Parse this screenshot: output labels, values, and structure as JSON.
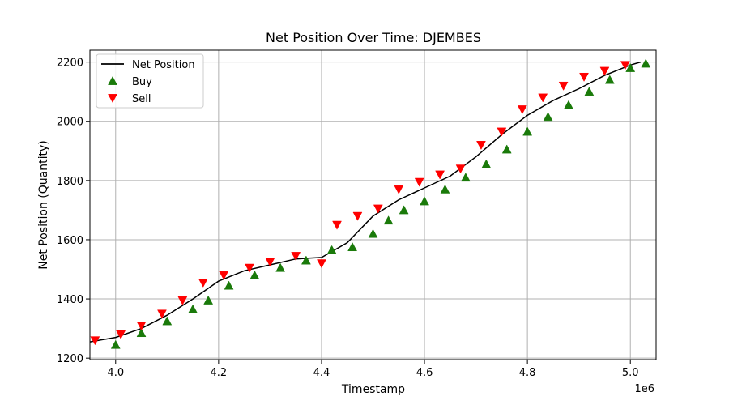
{
  "chart_data": {
    "type": "scatter",
    "title": "Net Position Over Time: DJEMBES",
    "xlabel": "Timestamp",
    "ylabel": "Net Position (Quantity)",
    "x_offset_label": "1e6",
    "xlim": [
      3.95,
      5.05
    ],
    "ylim": [
      1195,
      2240
    ],
    "x_ticks": [
      4.0,
      4.2,
      4.4,
      4.6,
      4.8,
      5.0
    ],
    "x_tick_labels": [
      "4.0",
      "4.2",
      "4.4",
      "4.6",
      "4.8",
      "5.0"
    ],
    "y_ticks": [
      1200,
      1400,
      1600,
      1800,
      2000,
      2200
    ],
    "y_tick_labels": [
      "1200",
      "1400",
      "1600",
      "1800",
      "2000",
      "2200"
    ],
    "grid": true,
    "legend_position": "top-left",
    "legend": [
      {
        "label": "Net Position",
        "marker": "line",
        "color": "#000000"
      },
      {
        "label": "Buy",
        "marker": "triangle-up",
        "color": "#1a7a0a"
      },
      {
        "label": "Sell",
        "marker": "triangle-down",
        "color": "#ff0000"
      }
    ],
    "series": [
      {
        "name": "Net Position",
        "kind": "line",
        "color": "#000000",
        "points": [
          [
            3.95,
            1255
          ],
          [
            4.0,
            1270
          ],
          [
            4.05,
            1300
          ],
          [
            4.1,
            1345
          ],
          [
            4.15,
            1400
          ],
          [
            4.2,
            1460
          ],
          [
            4.25,
            1495
          ],
          [
            4.3,
            1515
          ],
          [
            4.35,
            1535
          ],
          [
            4.4,
            1540
          ],
          [
            4.45,
            1590
          ],
          [
            4.5,
            1680
          ],
          [
            4.55,
            1735
          ],
          [
            4.6,
            1775
          ],
          [
            4.65,
            1815
          ],
          [
            4.7,
            1880
          ],
          [
            4.75,
            1955
          ],
          [
            4.8,
            2020
          ],
          [
            4.85,
            2070
          ],
          [
            4.9,
            2110
          ],
          [
            4.95,
            2155
          ],
          [
            5.0,
            2190
          ],
          [
            5.02,
            2200
          ]
        ]
      },
      {
        "name": "Buy",
        "kind": "markers",
        "color": "#1a7a0a",
        "points": [
          [
            4.0,
            1245
          ],
          [
            4.05,
            1285
          ],
          [
            4.1,
            1325
          ],
          [
            4.15,
            1365
          ],
          [
            4.18,
            1395
          ],
          [
            4.22,
            1445
          ],
          [
            4.27,
            1480
          ],
          [
            4.32,
            1505
          ],
          [
            4.37,
            1530
          ],
          [
            4.42,
            1565
          ],
          [
            4.46,
            1575
          ],
          [
            4.5,
            1620
          ],
          [
            4.53,
            1665
          ],
          [
            4.56,
            1700
          ],
          [
            4.6,
            1730
          ],
          [
            4.64,
            1770
          ],
          [
            4.68,
            1810
          ],
          [
            4.72,
            1855
          ],
          [
            4.76,
            1905
          ],
          [
            4.8,
            1965
          ],
          [
            4.84,
            2015
          ],
          [
            4.88,
            2055
          ],
          [
            4.92,
            2100
          ],
          [
            4.96,
            2140
          ],
          [
            5.0,
            2180
          ],
          [
            5.03,
            2195
          ]
        ]
      },
      {
        "name": "Sell",
        "kind": "markers",
        "color": "#ff0000",
        "points": [
          [
            3.96,
            1260
          ],
          [
            4.01,
            1280
          ],
          [
            4.05,
            1310
          ],
          [
            4.09,
            1350
          ],
          [
            4.13,
            1395
          ],
          [
            4.17,
            1455
          ],
          [
            4.21,
            1480
          ],
          [
            4.26,
            1505
          ],
          [
            4.3,
            1525
          ],
          [
            4.35,
            1545
          ],
          [
            4.4,
            1520
          ],
          [
            4.43,
            1650
          ],
          [
            4.47,
            1680
          ],
          [
            4.51,
            1705
          ],
          [
            4.55,
            1770
          ],
          [
            4.59,
            1795
          ],
          [
            4.63,
            1820
          ],
          [
            4.67,
            1840
          ],
          [
            4.71,
            1920
          ],
          [
            4.75,
            1965
          ],
          [
            4.79,
            2040
          ],
          [
            4.83,
            2080
          ],
          [
            4.87,
            2120
          ],
          [
            4.91,
            2150
          ],
          [
            4.95,
            2170
          ],
          [
            4.99,
            2190
          ]
        ]
      }
    ]
  }
}
